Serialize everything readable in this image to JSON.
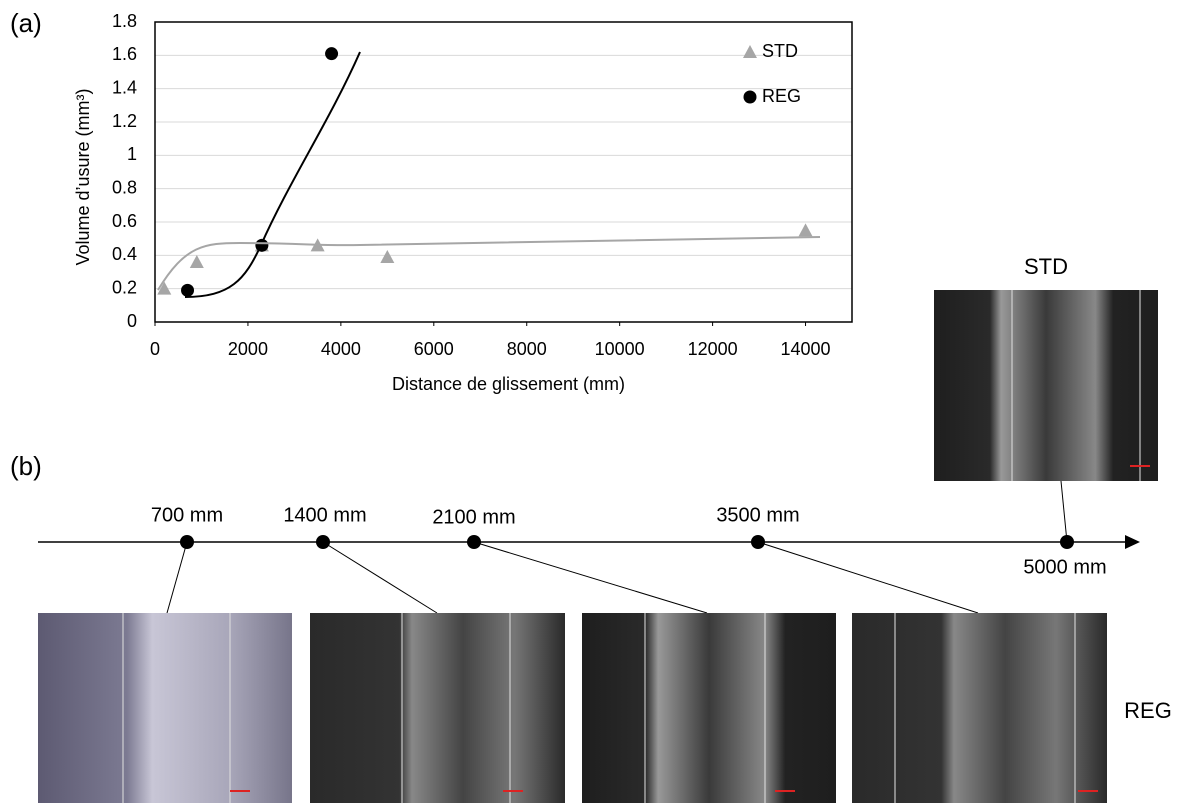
{
  "chart_data": {
    "type": "scatter",
    "ylabel": "Volume d’usure (mm³)",
    "xlabel": "Distance de glissement (mm)",
    "xlim": [
      0,
      15000
    ],
    "xticks": [
      0,
      2000,
      4000,
      6000,
      8000,
      10000,
      12000,
      14000
    ],
    "ylim": [
      0,
      1.8
    ],
    "yticks": [
      0,
      0.2,
      0.4,
      0.6,
      0.8,
      1,
      1.2,
      1.4,
      1.6,
      1.8
    ],
    "grid": true,
    "series": [
      {
        "name": "STD",
        "color": "#a6a6a6",
        "marker": "triangle",
        "x": [
          200,
          900,
          2300,
          3500,
          5000,
          14000
        ],
        "values": [
          0.2,
          0.36,
          0.46,
          0.46,
          0.39,
          0.55
        ]
      },
      {
        "name": "REG",
        "color": "#000000",
        "marker": "circle",
        "x": [
          700,
          2300,
          3800
        ],
        "values": [
          0.19,
          0.46,
          1.61
        ]
      }
    ]
  },
  "panel_labels": [
    "(a)",
    "(b)"
  ],
  "timeline": [
    "700 mm",
    "1400 mm",
    "2100 mm",
    "3500 mm",
    "5000 mm"
  ],
  "image_labels": [
    "STD",
    "REG"
  ]
}
